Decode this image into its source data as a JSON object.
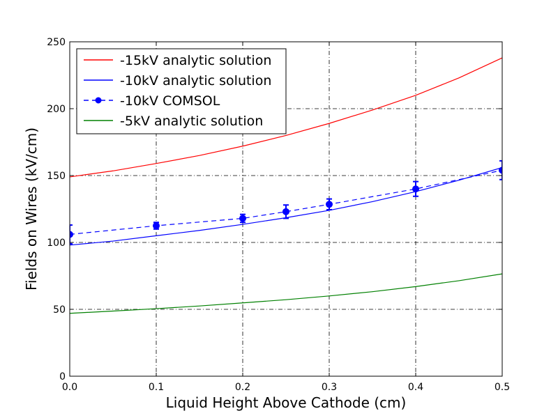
{
  "chart_data": {
    "type": "line",
    "xlabel": "Liquid Height Above Cathode (cm)",
    "ylabel": "Fields on Wires (kV/cm)",
    "xlim": [
      0.0,
      0.5
    ],
    "ylim": [
      0,
      250
    ],
    "xticks": [
      "0.0",
      "0.1",
      "0.2",
      "0.3",
      "0.4",
      "0.5"
    ],
    "yticks": [
      "0",
      "50",
      "100",
      "150",
      "200",
      "250"
    ],
    "grid": true,
    "legend_position": "top-left",
    "series": [
      {
        "name": "-15kV analytic solution",
        "color": "#ff0000",
        "style": "solid",
        "x": [
          0.0,
          0.05,
          0.1,
          0.15,
          0.2,
          0.25,
          0.3,
          0.35,
          0.4,
          0.45,
          0.5
        ],
        "y": [
          149,
          153.5,
          159,
          165,
          172,
          180,
          189,
          199,
          210,
          223,
          238
        ]
      },
      {
        "name": "-10kV analytic solution",
        "color": "#0000ff",
        "style": "solid",
        "x": [
          0.0,
          0.05,
          0.1,
          0.15,
          0.2,
          0.25,
          0.3,
          0.35,
          0.4,
          0.45,
          0.5
        ],
        "y": [
          98,
          101,
          105,
          109,
          113.5,
          118.5,
          124,
          130.5,
          138,
          146.5,
          156
        ]
      },
      {
        "name": "-10kV COMSOL",
        "color": "#0000ff",
        "style": "dashed",
        "marker": "circle",
        "x": [
          0.0,
          0.1,
          0.2,
          0.25,
          0.3,
          0.4,
          0.5
        ],
        "y": [
          106,
          112.5,
          118,
          123,
          128.5,
          140,
          154
        ],
        "yerr": [
          7,
          2.5,
          3,
          5,
          4,
          5.5,
          7
        ]
      },
      {
        "name": "-5kV analytic solution",
        "color": "#008000",
        "style": "solid",
        "x": [
          0.0,
          0.05,
          0.1,
          0.15,
          0.2,
          0.25,
          0.3,
          0.35,
          0.4,
          0.45,
          0.5
        ],
        "y": [
          47,
          48.7,
          50.5,
          52.5,
          54.8,
          57.2,
          60,
          63.2,
          67,
          71.4,
          76.5
        ]
      }
    ]
  }
}
